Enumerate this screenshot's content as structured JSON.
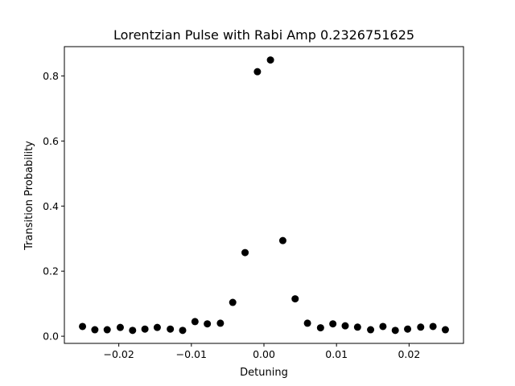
{
  "chart_data": {
    "type": "scatter",
    "title": "Lorentzian Pulse with Rabi Amp 0.2326751625",
    "xlabel": "Detuning",
    "ylabel": "Transition Probability",
    "xlim": [
      -0.0275,
      0.0275
    ],
    "ylim": [
      -0.022,
      0.89
    ],
    "grid": false,
    "marker_color": "#000000",
    "xticks": [
      -0.02,
      -0.01,
      0.0,
      0.01,
      0.02
    ],
    "xtick_labels": [
      "−0.02",
      "−0.01",
      "0.00",
      "0.01",
      "0.02"
    ],
    "yticks": [
      0.0,
      0.2,
      0.4,
      0.6,
      0.8
    ],
    "ytick_labels": [
      "0.0",
      "0.2",
      "0.4",
      "0.6",
      "0.8"
    ],
    "points": [
      {
        "x": -0.025,
        "y": 0.03
      },
      {
        "x": -0.0233,
        "y": 0.02
      },
      {
        "x": -0.0216,
        "y": 0.02
      },
      {
        "x": -0.0198,
        "y": 0.027
      },
      {
        "x": -0.0181,
        "y": 0.018
      },
      {
        "x": -0.0164,
        "y": 0.022
      },
      {
        "x": -0.0147,
        "y": 0.027
      },
      {
        "x": -0.0129,
        "y": 0.022
      },
      {
        "x": -0.0112,
        "y": 0.018
      },
      {
        "x": -0.0095,
        "y": 0.045
      },
      {
        "x": -0.0078,
        "y": 0.038
      },
      {
        "x": -0.006,
        "y": 0.04
      },
      {
        "x": -0.0043,
        "y": 0.104
      },
      {
        "x": -0.0026,
        "y": 0.257
      },
      {
        "x": -0.0009,
        "y": 0.813
      },
      {
        "x": 0.0009,
        "y": 0.849
      },
      {
        "x": 0.0026,
        "y": 0.294
      },
      {
        "x": 0.0043,
        "y": 0.115
      },
      {
        "x": 0.006,
        "y": 0.04
      },
      {
        "x": 0.0078,
        "y": 0.026
      },
      {
        "x": 0.0095,
        "y": 0.038
      },
      {
        "x": 0.0112,
        "y": 0.032
      },
      {
        "x": 0.0129,
        "y": 0.028
      },
      {
        "x": 0.0147,
        "y": 0.02
      },
      {
        "x": 0.0164,
        "y": 0.03
      },
      {
        "x": 0.0181,
        "y": 0.018
      },
      {
        "x": 0.0198,
        "y": 0.022
      },
      {
        "x": 0.0216,
        "y": 0.028
      },
      {
        "x": 0.0233,
        "y": 0.03
      },
      {
        "x": 0.025,
        "y": 0.02
      }
    ]
  }
}
